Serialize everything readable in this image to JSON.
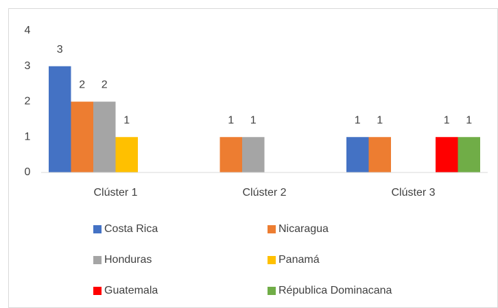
{
  "chart_data": {
    "type": "bar",
    "categories": [
      "Clúster 1",
      "Clúster 2",
      "Clúster 3"
    ],
    "series": [
      {
        "name": "Costa Rica",
        "color": "#4472c4",
        "values": [
          3,
          null,
          1
        ]
      },
      {
        "name": "Nicaragua",
        "color": "#ed7d31",
        "values": [
          2,
          1,
          1
        ]
      },
      {
        "name": "Honduras",
        "color": "#a5a5a5",
        "values": [
          2,
          1,
          null
        ]
      },
      {
        "name": "Panamá",
        "color": "#ffc000",
        "values": [
          1,
          null,
          null
        ]
      },
      {
        "name": "Guatemala",
        "color": "#ff0000",
        "values": [
          null,
          null,
          1
        ]
      },
      {
        "name": "Républica Dominacana",
        "color": "#70ad47",
        "values": [
          null,
          null,
          1
        ]
      }
    ],
    "ylim": [
      0,
      4
    ],
    "yticks": [
      0,
      1,
      2,
      3,
      4
    ],
    "grid": false,
    "legend": "bottom"
  }
}
